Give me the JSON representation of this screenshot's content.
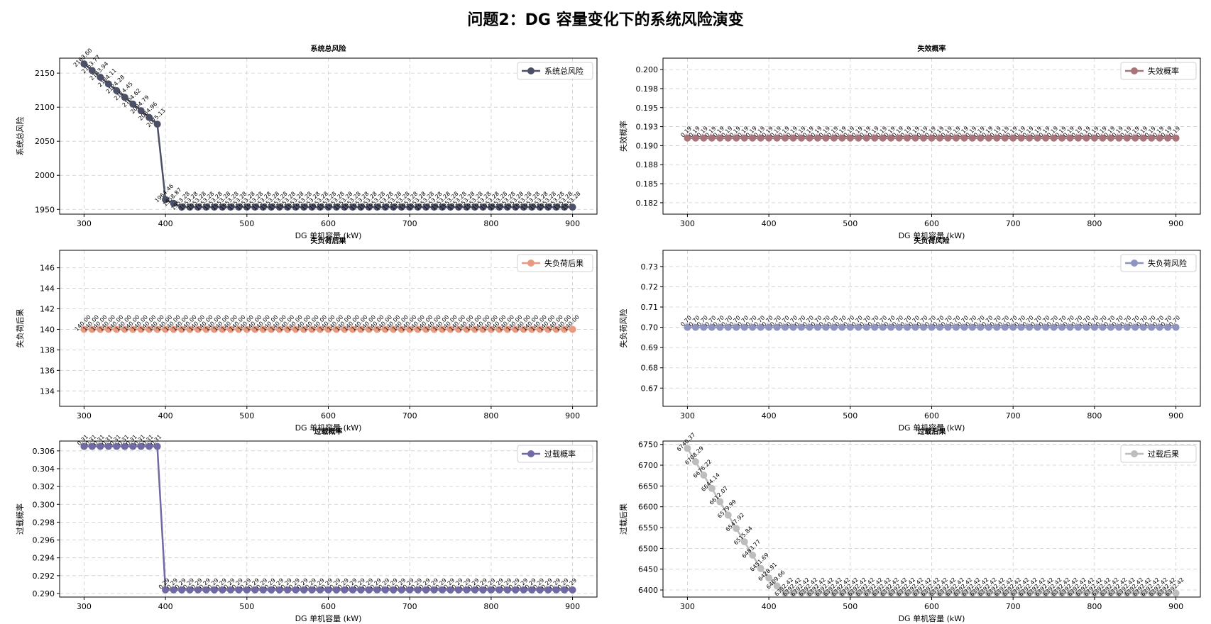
{
  "figure": {
    "title": "问题2：DG 容量变化下的系统风险演变"
  },
  "colors": {
    "risk": "#4b5066",
    "fail": "#a8747a",
    "cons": "#e89a80",
    "loadrisk": "#8e93bf",
    "overp": "#6f6aa3",
    "overc": "#bdbdbd",
    "grid": "#cccccc"
  },
  "chart_data": [
    {
      "id": "risk",
      "type": "line",
      "title": "系统总风险",
      "xlabel": "DG 单机容量 (kW)",
      "ylabel": "系统总风险",
      "legend": "系统总风险",
      "legend_position": "upper-right",
      "grid": true,
      "xlim": [
        270,
        930
      ],
      "ylim": [
        1943,
        2172
      ],
      "xticks": [
        300,
        400,
        500,
        600,
        700,
        800,
        900
      ],
      "yticks": [
        1950,
        2000,
        2050,
        2100,
        2150
      ],
      "x_start": 300,
      "x_step": 10,
      "values": [
        2163.6,
        2153.77,
        2143.94,
        2134.11,
        2124.28,
        2114.45,
        2104.62,
        2094.79,
        2084.96,
        2075.13,
        1964.46,
        1958.87,
        1953.28,
        1953.28,
        1953.28,
        1953.28,
        1953.28,
        1953.28,
        1953.28,
        1953.28,
        1953.28,
        1953.28,
        1953.28,
        1953.28,
        1953.28,
        1953.28,
        1953.28,
        1953.28,
        1953.28,
        1953.28,
        1953.28,
        1953.28,
        1953.28,
        1953.28,
        1953.28,
        1953.28,
        1953.28,
        1953.28,
        1953.28,
        1953.28,
        1953.28,
        1953.28,
        1953.28,
        1953.28,
        1953.28,
        1953.28,
        1953.28,
        1953.28,
        1953.28,
        1953.28,
        1953.28,
        1953.28,
        1953.28,
        1953.28,
        1953.28,
        1953.28,
        1953.28,
        1953.28,
        1953.28,
        1953.28,
        1953.28
      ],
      "decimals": 2
    },
    {
      "id": "fail",
      "type": "line",
      "title": "失效概率",
      "xlabel": "DG 单机容量 (kW)",
      "ylabel": "失效概率",
      "legend": "失效概率",
      "legend_position": "upper-right",
      "grid": true,
      "xlim": [
        270,
        930
      ],
      "ylim": [
        0.181,
        0.2015
      ],
      "xticks": [
        300,
        400,
        500,
        600,
        700,
        800,
        900
      ],
      "yticks": [
        0.1825,
        0.185,
        0.1875,
        0.19,
        0.1925,
        0.195,
        0.1975,
        0.2
      ],
      "x_start": 300,
      "x_step": 10,
      "constant": 0.191,
      "count": 61,
      "decimals": 2
    },
    {
      "id": "cons",
      "type": "line",
      "title": "失负荷后果",
      "xlabel": "DG 单机容量 (kW)",
      "ylabel": "失负荷后果",
      "legend": "失负荷后果",
      "legend_position": "upper-right",
      "grid": true,
      "xlim": [
        270,
        930
      ],
      "ylim": [
        132.5,
        147.7
      ],
      "xticks": [
        300,
        400,
        500,
        600,
        700,
        800,
        900
      ],
      "yticks": [
        134,
        136,
        138,
        140,
        142,
        144,
        146
      ],
      "x_start": 300,
      "x_step": 10,
      "constant": 140.0,
      "count": 61,
      "decimals": 2
    },
    {
      "id": "loadrisk",
      "type": "line",
      "title": "失负荷风险",
      "xlabel": "DG 单机容量 (kW)",
      "ylabel": "失负荷风险",
      "legend": "失负荷风险",
      "legend_position": "upper-right",
      "grid": true,
      "xlim": [
        270,
        930
      ],
      "ylim": [
        0.661,
        0.738
      ],
      "xticks": [
        300,
        400,
        500,
        600,
        700,
        800,
        900
      ],
      "yticks": [
        0.67,
        0.68,
        0.69,
        0.7,
        0.71,
        0.72,
        0.73
      ],
      "x_start": 300,
      "x_step": 10,
      "constant": 0.7,
      "count": 61,
      "decimals": 2
    },
    {
      "id": "overp",
      "type": "line",
      "title": "过载概率",
      "xlabel": "DG 单机容量 (kW)",
      "ylabel": "过载概率",
      "legend": "过载概率",
      "legend_position": "upper-right",
      "grid": true,
      "xlim": [
        270,
        930
      ],
      "ylim": [
        0.2896,
        0.3071
      ],
      "xticks": [
        300,
        400,
        500,
        600,
        700,
        800,
        900
      ],
      "yticks": [
        0.29,
        0.292,
        0.294,
        0.296,
        0.298,
        0.3,
        0.302,
        0.304,
        0.306
      ],
      "x_start": 300,
      "x_step": 10,
      "values": [
        0.3065,
        0.3065,
        0.3065,
        0.3065,
        0.3065,
        0.3065,
        0.3065,
        0.3065,
        0.3065,
        0.3065,
        0.2904,
        0.2904,
        0.2904,
        0.2904,
        0.2904,
        0.2904,
        0.2904,
        0.2904,
        0.2904,
        0.2904,
        0.2904,
        0.2904,
        0.2904,
        0.2904,
        0.2904,
        0.2904,
        0.2904,
        0.2904,
        0.2904,
        0.2904,
        0.2904,
        0.2904,
        0.2904,
        0.2904,
        0.2904,
        0.2904,
        0.2904,
        0.2904,
        0.2904,
        0.2904,
        0.2904,
        0.2904,
        0.2904,
        0.2904,
        0.2904,
        0.2904,
        0.2904,
        0.2904,
        0.2904,
        0.2904,
        0.2904,
        0.2904,
        0.2904,
        0.2904,
        0.2904,
        0.2904,
        0.2904,
        0.2904,
        0.2904,
        0.2904,
        0.2904
      ],
      "decimals": 2
    },
    {
      "id": "overc",
      "type": "line",
      "title": "过载后果",
      "xlabel": "DG 单机容量 (kW)",
      "ylabel": "过载后果",
      "legend": "过载后果",
      "legend_position": "upper-right",
      "grid": true,
      "xlim": [
        270,
        930
      ],
      "ylim": [
        6383,
        6758
      ],
      "xticks": [
        300,
        400,
        500,
        600,
        700,
        800,
        900
      ],
      "yticks": [
        6400,
        6450,
        6500,
        6550,
        6600,
        6650,
        6700,
        6750
      ],
      "x_start": 300,
      "x_step": 10,
      "values": [
        6740.37,
        6708.29,
        6676.22,
        6644.14,
        6612.07,
        6579.99,
        6547.92,
        6515.84,
        6483.77,
        6451.69,
        6428.91,
        6409.66,
        6392.42,
        6392.42,
        6392.42,
        6392.42,
        6392.42,
        6392.42,
        6392.42,
        6392.42,
        6392.42,
        6392.42,
        6392.42,
        6392.42,
        6392.42,
        6392.42,
        6392.42,
        6392.42,
        6392.42,
        6392.42,
        6392.42,
        6392.42,
        6392.42,
        6392.42,
        6392.42,
        6392.42,
        6392.42,
        6392.42,
        6392.42,
        6392.42,
        6392.42,
        6392.42,
        6392.42,
        6392.42,
        6392.42,
        6392.42,
        6392.42,
        6392.42,
        6392.42,
        6392.42,
        6392.42,
        6392.42,
        6392.42,
        6392.42,
        6392.42,
        6392.42,
        6392.42,
        6392.42,
        6392.42,
        6392.42,
        6392.42
      ],
      "decimals": 2
    }
  ]
}
